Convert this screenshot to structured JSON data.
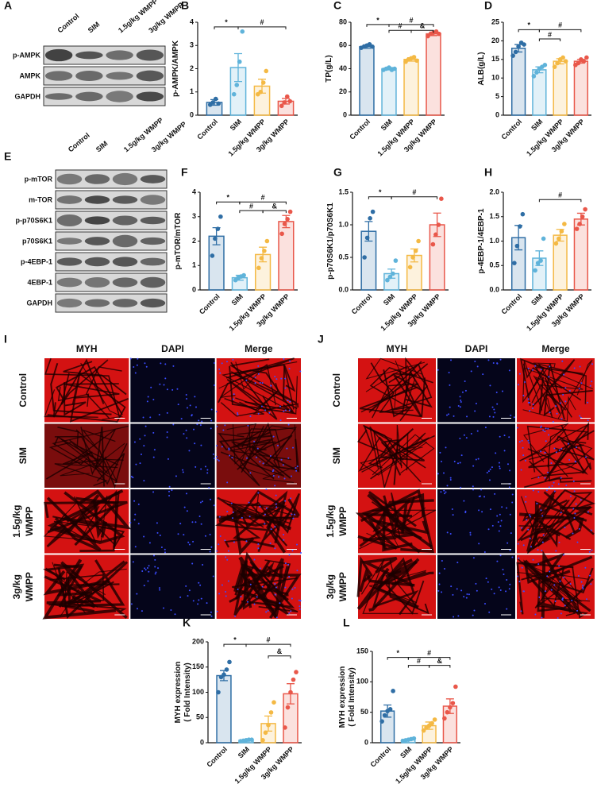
{
  "blots": [
    {
      "panel": "A",
      "lanes": [
        "Control",
        "SIM",
        "1.5g/kg WMPP",
        "3g/kg WMPP"
      ],
      "rows": [
        "p-AMPK",
        "AMPK",
        "GAPDH"
      ]
    },
    {
      "panel": "E",
      "lanes": [
        "Control",
        "SIM",
        "1.5g/kg WMPP",
        "3g/kg WMPP"
      ],
      "rows": [
        "p-mTOR",
        "m-TOR",
        "p-p70S6K1",
        "p70S6K1",
        "p-4EBP-1",
        "4EBP-1",
        "GAPDH"
      ]
    }
  ],
  "micrographs": [
    {
      "panel": "I",
      "columns": [
        "MYH",
        "DAPI",
        "Merge"
      ],
      "rows": [
        [
          "Control"
        ],
        [
          "SIM"
        ],
        [
          "1.5g/kg",
          "WMPP"
        ],
        [
          "3g/kg",
          "WMPP"
        ]
      ]
    },
    {
      "panel": "J",
      "columns": [
        "MYH",
        "DAPI",
        "Merge"
      ],
      "rows": [
        [
          "Control"
        ],
        [
          "SIM"
        ],
        [
          "1.5g/kg",
          "WMPP"
        ],
        [
          "3g/kg",
          "WMPP"
        ]
      ]
    }
  ],
  "chart_data": [
    {
      "type": "bar",
      "panel": "B",
      "ylabel": [
        "p-AMPK/AMPK"
      ],
      "categories": [
        "Control",
        "SIM",
        "1.5g/kg WMPP",
        "3g/kg WMPP"
      ],
      "colors": [
        "#2f6ea5",
        "#5fb3da",
        "#f4b944",
        "#e9574a"
      ],
      "values": [
        0.55,
        2.05,
        1.25,
        0.6
      ],
      "errors": [
        0.12,
        0.6,
        0.3,
        0.12
      ],
      "points": [
        [
          0.45,
          0.55,
          0.7,
          0.5
        ],
        [
          0.9,
          1.3,
          2.3,
          3.6
        ],
        [
          0.9,
          1.0,
          1.4,
          1.9
        ],
        [
          0.4,
          0.55,
          0.8,
          0.6
        ]
      ],
      "ylim": [
        0,
        4
      ],
      "yticks": [
        0,
        1,
        2,
        3,
        4
      ],
      "annotations": [
        {
          "text": "*",
          "pair": [
            0,
            1
          ],
          "y": 3.8
        },
        {
          "text": "#",
          "pair": [
            1,
            3
          ],
          "y": 3.8
        }
      ]
    },
    {
      "type": "bar",
      "panel": "C",
      "ylabel": [
        "TP(g/L)"
      ],
      "categories": [
        "Control",
        "SIM",
        "1.5g/kg WMPP",
        "3g/kg WMPP"
      ],
      "colors": [
        "#2f6ea5",
        "#5fb3da",
        "#f4b944",
        "#e9574a"
      ],
      "values": [
        59,
        40,
        48,
        70
      ],
      "errors": [
        1.5,
        1,
        1.5,
        1.5
      ],
      "points": [
        [
          58,
          59,
          60,
          61,
          59
        ],
        [
          39,
          40,
          41,
          39,
          40
        ],
        [
          46,
          48,
          49,
          50,
          47
        ],
        [
          68,
          70,
          71,
          72,
          70
        ]
      ],
      "ylim": [
        0,
        80
      ],
      "yticks": [
        0,
        20,
        40,
        60,
        80
      ],
      "annotations": [
        {
          "text": "*",
          "pair": [
            0,
            1
          ],
          "y": 78
        },
        {
          "text": "#",
          "pair": [
            1,
            3
          ],
          "y": 78
        },
        {
          "text": "#",
          "pair": [
            1,
            2
          ],
          "y": 73
        },
        {
          "text": "&",
          "pair": [
            2,
            3
          ],
          "y": 73
        }
      ]
    },
    {
      "type": "bar",
      "panel": "D",
      "ylabel": [
        "ALB(g/L)"
      ],
      "categories": [
        "Control",
        "SIM",
        "1.5g/kg WMPP",
        "3g/kg WMPP"
      ],
      "colors": [
        "#2f6ea5",
        "#5fb3da",
        "#f4b944",
        "#e9574a"
      ],
      "values": [
        18,
        12.2,
        14.5,
        14.5
      ],
      "errors": [
        1,
        0.8,
        0.7,
        0.5
      ],
      "points": [
        [
          16,
          17,
          18.5,
          19.5,
          19
        ],
        [
          10.5,
          11.5,
          12.5,
          13,
          13.5
        ],
        [
          13,
          14,
          15,
          15.5,
          14.5
        ],
        [
          13.5,
          14,
          15,
          14.5,
          15.5
        ]
      ],
      "ylim": [
        0,
        25
      ],
      "yticks": [
        0,
        5,
        10,
        15,
        20,
        25
      ],
      "annotations": [
        {
          "text": "*",
          "pair": [
            0,
            1
          ],
          "y": 23
        },
        {
          "text": "#",
          "pair": [
            1,
            3
          ],
          "y": 23
        },
        {
          "text": "#",
          "pair": [
            1,
            2
          ],
          "y": 20.5
        }
      ]
    },
    {
      "type": "bar",
      "panel": "F",
      "ylabel": [
        "p-mTOR/mTOR"
      ],
      "categories": [
        "Control",
        "SIM",
        "1.5g/kg WMPP",
        "3g/kg WMPP"
      ],
      "colors": [
        "#2f6ea5",
        "#5fb3da",
        "#f4b944",
        "#e9574a"
      ],
      "values": [
        2.2,
        0.5,
        1.45,
        2.8
      ],
      "errors": [
        0.35,
        0.1,
        0.3,
        0.25
      ],
      "points": [
        [
          1.4,
          2.1,
          2.5,
          3.0
        ],
        [
          0.4,
          0.5,
          0.55,
          0.6
        ],
        [
          0.9,
          1.3,
          1.6,
          2.0
        ],
        [
          2.3,
          2.7,
          2.9,
          3.2
        ]
      ],
      "ylim": [
        0,
        4
      ],
      "yticks": [
        0,
        1,
        2,
        3,
        4
      ],
      "annotations": [
        {
          "text": "*",
          "pair": [
            0,
            1
          ],
          "y": 3.6
        },
        {
          "text": "#",
          "pair": [
            1,
            3
          ],
          "y": 3.6
        },
        {
          "text": "#",
          "pair": [
            1,
            2
          ],
          "y": 3.25
        },
        {
          "text": "&",
          "pair": [
            2,
            3
          ],
          "y": 3.25
        }
      ]
    },
    {
      "type": "bar",
      "panel": "G",
      "ylabel": [
        "p-p70S6K1/p70S6K1"
      ],
      "categories": [
        "Control",
        "SIM",
        "1.5g/kg WMPP",
        "3g/kg WMPP"
      ],
      "colors": [
        "#2f6ea5",
        "#5fb3da",
        "#f4b944",
        "#e9574a"
      ],
      "values": [
        0.9,
        0.25,
        0.53,
        1.0
      ],
      "errors": [
        0.15,
        0.07,
        0.1,
        0.18
      ],
      "points": [
        [
          0.5,
          0.8,
          1.1,
          1.2
        ],
        [
          0.15,
          0.2,
          0.25,
          0.45
        ],
        [
          0.35,
          0.5,
          0.6,
          0.75
        ],
        [
          0.7,
          0.85,
          1.0,
          1.4
        ]
      ],
      "ylim": [
        0,
        1.5
      ],
      "yticks": [
        {
          "value": 0,
          "label": "0.0"
        },
        0.5,
        {
          "value": 1,
          "label": "1.0"
        },
        1.5
      ],
      "annotations": [
        {
          "text": "*",
          "pair": [
            0,
            1
          ],
          "y": 1.43
        },
        {
          "text": "#",
          "pair": [
            1,
            3
          ],
          "y": 1.43
        }
      ]
    },
    {
      "type": "bar",
      "panel": "H",
      "ylabel": [
        "p-4EBP-1/4EBP-1"
      ],
      "categories": [
        "Control",
        "SIM",
        "1.5g/kg WMPP",
        "3g/kg WMPP"
      ],
      "colors": [
        "#2f6ea5",
        "#5fb3da",
        "#f4b944",
        "#e9574a"
      ],
      "values": [
        1.07,
        0.65,
        1.12,
        1.45
      ],
      "errors": [
        0.25,
        0.15,
        0.12,
        0.12
      ],
      "points": [
        [
          0.55,
          0.9,
          1.3,
          1.55
        ],
        [
          0.4,
          0.55,
          0.6,
          1.05
        ],
        [
          0.95,
          1.05,
          1.2,
          1.35
        ],
        [
          1.25,
          1.35,
          1.5,
          1.65
        ]
      ],
      "ylim": [
        0,
        2
      ],
      "yticks": [
        {
          "value": 0,
          "label": "0.0"
        },
        0.5,
        {
          "value": 1,
          "label": "1.0"
        },
        1.5,
        {
          "value": 2,
          "label": "2.0"
        }
      ],
      "annotations": [
        {
          "text": "#",
          "pair": [
            1,
            3
          ],
          "y": 1.85
        }
      ]
    },
    {
      "type": "bar",
      "panel": "K",
      "ylabel": [
        "MYH expression",
        "( Fold Intensity)"
      ],
      "categories": [
        "Control",
        "SIM",
        "1.5g/kg WMPP",
        "3g/kg WMPP"
      ],
      "colors": [
        "#2f6ea5",
        "#5fb3da",
        "#f4b944",
        "#e9574a"
      ],
      "values": [
        133,
        5,
        38,
        97
      ],
      "errors": [
        10,
        1,
        15,
        20
      ],
      "points": [
        [
          100,
          130,
          135,
          145,
          160
        ],
        [
          3,
          4,
          5,
          6,
          6
        ],
        [
          5,
          20,
          35,
          60,
          80
        ],
        [
          30,
          70,
          100,
          125,
          140
        ]
      ],
      "ylim": [
        0,
        200
      ],
      "yticks": [
        0,
        50,
        100,
        150,
        200
      ],
      "annotations": [
        {
          "text": "*",
          "pair": [
            0,
            1
          ],
          "y": 195
        },
        {
          "text": "#",
          "pair": [
            1,
            3
          ],
          "y": 195
        },
        {
          "text": "&",
          "pair": [
            2,
            3
          ],
          "y": 172
        }
      ]
    },
    {
      "type": "bar",
      "panel": "L",
      "ylabel": [
        "MYH expression",
        "( Fold Intensity)"
      ],
      "categories": [
        "Control",
        "SIM",
        "1.5g/kg WMPP",
        "3g/kg WMPP"
      ],
      "colors": [
        "#2f6ea5",
        "#5fb3da",
        "#f4b944",
        "#e9574a"
      ],
      "values": [
        52,
        5,
        28,
        60
      ],
      "errors": [
        10,
        1,
        6,
        12
      ],
      "points": [
        [
          35,
          45,
          52,
          55,
          85
        ],
        [
          3,
          4,
          5,
          6,
          7
        ],
        [
          20,
          25,
          28,
          32,
          38
        ],
        [
          40,
          50,
          58,
          65,
          92
        ]
      ],
      "ylim": [
        0,
        150
      ],
      "yticks": [
        0,
        50,
        100,
        150
      ],
      "annotations": [
        {
          "text": "*",
          "pair": [
            0,
            1
          ],
          "y": 140
        },
        {
          "text": "#",
          "pair": [
            1,
            3
          ],
          "y": 140
        },
        {
          "text": "#",
          "pair": [
            1,
            2
          ],
          "y": 127
        },
        {
          "text": "&",
          "pair": [
            2,
            3
          ],
          "y": 127
        }
      ]
    }
  ]
}
